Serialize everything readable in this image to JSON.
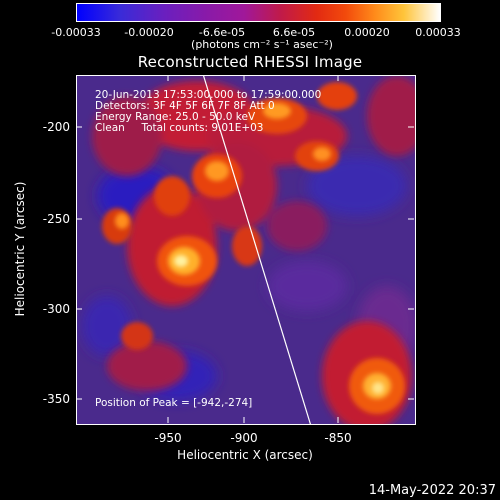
{
  "colorbar": {
    "ticks": [
      "-0.00033",
      "-0.00020",
      "-6.6e-05",
      "6.6e-05",
      "0.00020",
      "0.00033"
    ],
    "unit": "(photons cm⁻² s⁻¹ asec⁻²)"
  },
  "title": "Reconstructed RHESSI Image",
  "info": {
    "line1": "20-Jun-2013 17:53:00.000 to 17:59:00.000",
    "line2": "Detectors: 3F 4F 5F 6F 7F 8F Att 0",
    "line3": "Energy Range: 25.0 - 50.0 keV",
    "line4": "Clean     Total counts: 9.01E+03",
    "peak": "Position of Peak = [-942,-274]"
  },
  "axes": {
    "xlabel": "Heliocentric X (arcsec)",
    "ylabel": "Heliocentric Y (arcsec)",
    "xticks": [
      "-950",
      "-900",
      "-850"
    ],
    "yticks": [
      "-200",
      "-250",
      "-300",
      "-350"
    ]
  },
  "footer_date": "14-May-2022 20:37"
}
